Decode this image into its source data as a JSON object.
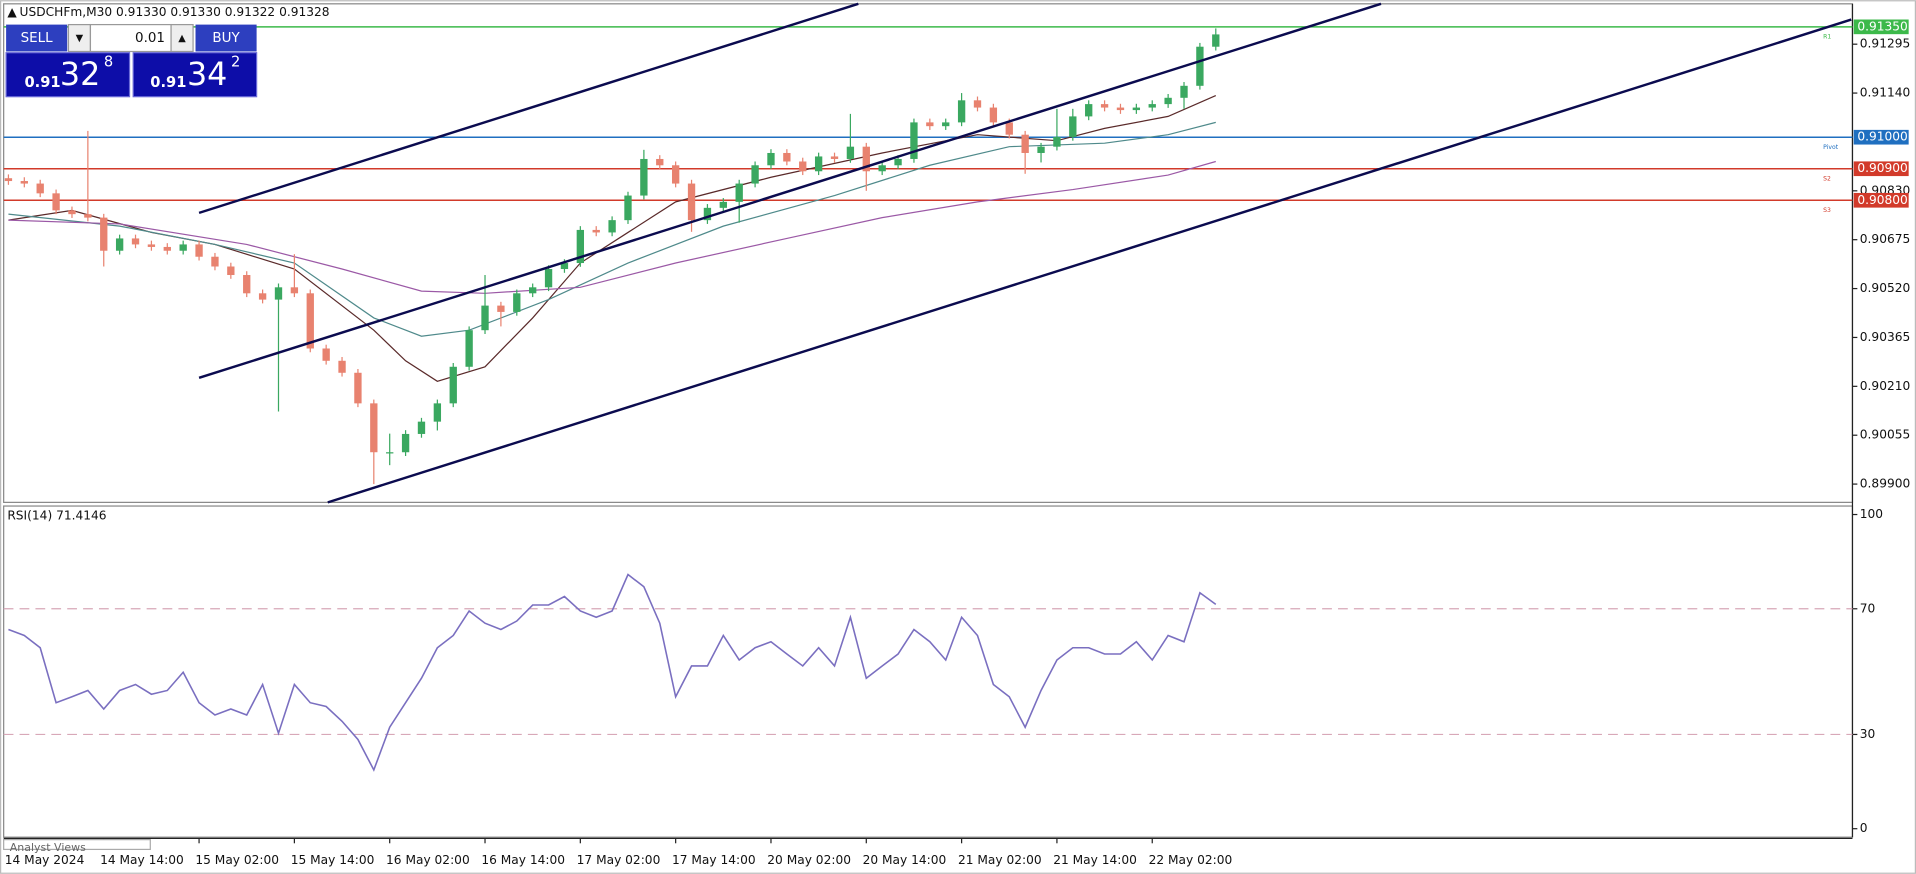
{
  "header": {
    "symbol_line": "USDCHFm,M30  0.91330 0.91330 0.91322 0.91328"
  },
  "trade_panel": {
    "sell": "SELL",
    "buy": "BUY",
    "lot": "0.01",
    "sell_big": "0.91",
    "sell_main": "32",
    "sell_small": "8",
    "buy_big": "0.91",
    "buy_main": "34",
    "buy_small": "2"
  },
  "footer": {
    "tab": "Analyst Views"
  },
  "chart_data": [
    {
      "type": "candlestick",
      "up_color": "#3aa860",
      "down_color": "#e8826f",
      "xlim": [
        -0.3,
        116
      ],
      "ylim": [
        0.89842,
        0.91423
      ],
      "yticks": [
        {
          "value": 0.91295,
          "label": "0.91295"
        },
        {
          "value": 0.9114,
          "label": "0.91140"
        },
        {
          "value": 0.9083,
          "label": "0.90830"
        },
        {
          "value": 0.90675,
          "label": "0.90675"
        },
        {
          "value": 0.9052,
          "label": "0.90520"
        },
        {
          "value": 0.90365,
          "label": "0.90365"
        },
        {
          "value": 0.9021,
          "label": "0.90210"
        },
        {
          "value": 0.90055,
          "label": "0.90055"
        },
        {
          "value": 0.899,
          "label": "0.89900"
        }
      ],
      "xticks": [
        {
          "value": 0,
          "label": "14 May 2024"
        },
        {
          "value": 6,
          "label": "14 May 14:00"
        },
        {
          "value": 12,
          "label": "15 May 02:00"
        },
        {
          "value": 18,
          "label": "15 May 14:00"
        },
        {
          "value": 24,
          "label": "16 May 02:00"
        },
        {
          "value": 30,
          "label": "16 May 14:00"
        },
        {
          "value": 36,
          "label": "17 May 02:00"
        },
        {
          "value": 42,
          "label": "17 May 14:00"
        },
        {
          "value": 48,
          "label": "20 May 02:00"
        },
        {
          "value": 54,
          "label": "20 May 14:00"
        },
        {
          "value": 60,
          "label": "21 May 02:00"
        },
        {
          "value": 66,
          "label": "21 May 14:00"
        },
        {
          "value": 72,
          "label": "22 May 02:00"
        }
      ],
      "open": [
        0.9087,
        0.90861,
        0.90853,
        0.90822,
        0.90768,
        0.90756,
        0.90745,
        0.9064,
        0.90679,
        0.9066,
        0.90652,
        0.9064,
        0.9066,
        0.90621,
        0.9059,
        0.90563,
        0.90505,
        0.90485,
        0.90524,
        0.90505,
        0.9033,
        0.90291,
        0.90253,
        0.90156,
        0.90001,
        0.90001,
        0.90059,
        0.90098,
        0.90156,
        0.90272,
        0.90388,
        0.90466,
        0.90446,
        0.90505,
        0.90524,
        0.90582,
        0.90601,
        0.90706,
        0.90698,
        0.90737,
        0.90815,
        0.90931,
        0.90911,
        0.90853,
        0.90737,
        0.90776,
        0.90795,
        0.90853,
        0.90911,
        0.9095,
        0.90923,
        0.90892,
        0.90939,
        0.90931,
        0.9097,
        0.90892,
        0.90911,
        0.90931,
        0.91047,
        0.91035,
        0.91047,
        0.91117,
        0.91094,
        0.91047,
        0.91008,
        0.9095,
        0.9097,
        0.91001,
        0.91066,
        0.91105,
        0.91094,
        0.91086,
        0.91094,
        0.91105,
        0.91125,
        0.91163,
        0.91287
      ],
      "high": [
        0.90882,
        0.90873,
        0.90865,
        0.90834,
        0.9078,
        0.9102,
        0.90757,
        0.90691,
        0.90691,
        0.90672,
        0.90664,
        0.90672,
        0.90672,
        0.90633,
        0.90602,
        0.90575,
        0.90517,
        0.90536,
        0.90629,
        0.90517,
        0.90342,
        0.90303,
        0.90265,
        0.90168,
        0.9006,
        0.90071,
        0.9011,
        0.90168,
        0.90284,
        0.904,
        0.90563,
        0.90478,
        0.90517,
        0.90536,
        0.90594,
        0.90613,
        0.90718,
        0.90718,
        0.90749,
        0.90827,
        0.9096,
        0.90943,
        0.90923,
        0.90865,
        0.90788,
        0.90807,
        0.90865,
        0.90923,
        0.90962,
        0.90962,
        0.90935,
        0.90951,
        0.90951,
        0.91074,
        0.90982,
        0.90923,
        0.90943,
        0.91059,
        0.91059,
        0.91059,
        0.9114,
        0.91129,
        0.91106,
        0.91059,
        0.9102,
        0.90982,
        0.9109,
        0.9109,
        0.91117,
        0.91117,
        0.91106,
        0.91106,
        0.91117,
        0.91137,
        0.91175,
        0.91299,
        0.91345
      ],
      "low": [
        0.90849,
        0.90841,
        0.9081,
        0.90756,
        0.90744,
        0.90733,
        0.9059,
        0.90628,
        0.90648,
        0.9064,
        0.90628,
        0.90628,
        0.90609,
        0.90578,
        0.90551,
        0.90493,
        0.90473,
        0.9013,
        0.90493,
        0.90318,
        0.90279,
        0.90241,
        0.90144,
        0.899,
        0.8996,
        0.89989,
        0.90047,
        0.9007,
        0.90144,
        0.9026,
        0.90376,
        0.904,
        0.90434,
        0.90493,
        0.90512,
        0.9057,
        0.90589,
        0.90686,
        0.90686,
        0.90725,
        0.90803,
        0.90899,
        0.90841,
        0.907,
        0.90725,
        0.90764,
        0.90729,
        0.90841,
        0.90899,
        0.90911,
        0.9088,
        0.9088,
        0.90919,
        0.90919,
        0.9083,
        0.9088,
        0.90899,
        0.90919,
        0.91023,
        0.91023,
        0.91035,
        0.91082,
        0.91035,
        0.90996,
        0.90884,
        0.9092,
        0.90958,
        0.90989,
        0.91054,
        0.91082,
        0.91074,
        0.91074,
        0.91082,
        0.91093,
        0.9109,
        0.91151,
        0.91275
      ],
      "close": [
        0.90861,
        0.90853,
        0.90822,
        0.90768,
        0.90756,
        0.90745,
        0.9064,
        0.90679,
        0.9066,
        0.90652,
        0.9064,
        0.9066,
        0.90621,
        0.9059,
        0.90563,
        0.90505,
        0.90485,
        0.90524,
        0.90505,
        0.9033,
        0.90291,
        0.90253,
        0.90156,
        0.90001,
        0.90001,
        0.90059,
        0.90098,
        0.90156,
        0.90272,
        0.90388,
        0.90466,
        0.90446,
        0.90505,
        0.90524,
        0.90582,
        0.90601,
        0.90706,
        0.90698,
        0.90737,
        0.90815,
        0.90931,
        0.90911,
        0.90853,
        0.90737,
        0.90776,
        0.90795,
        0.90853,
        0.90911,
        0.9095,
        0.90923,
        0.90892,
        0.90939,
        0.90931,
        0.9097,
        0.90892,
        0.90911,
        0.90931,
        0.91047,
        0.91035,
        0.91047,
        0.91117,
        0.91094,
        0.91047,
        0.91008,
        0.9095,
        0.9097,
        0.91001,
        0.91066,
        0.91105,
        0.91094,
        0.91086,
        0.91094,
        0.91105,
        0.91125,
        0.91163,
        0.91287,
        0.91326
      ],
      "moving_averages": [
        {
          "color": "#5a2a2a",
          "x": [
            0,
            4,
            9,
            13,
            18,
            23,
            25,
            27,
            30,
            33,
            36,
            39,
            42,
            48,
            55,
            61,
            66,
            69,
            73,
            76
          ],
          "values": [
            0.90737,
            0.90768,
            0.90698,
            0.9066,
            0.90582,
            0.90388,
            0.90291,
            0.90226,
            0.90272,
            0.90427,
            0.90601,
            0.90698,
            0.90795,
            0.90873,
            0.9095,
            0.91008,
            0.90989,
            0.91028,
            0.91066,
            0.91132
          ]
        },
        {
          "color": "#4f8a8b",
          "x": [
            0,
            7,
            13,
            18,
            23,
            26,
            29,
            34,
            39,
            45,
            52,
            58,
            63,
            69,
            73,
            76
          ],
          "values": [
            0.90756,
            0.90718,
            0.9066,
            0.90601,
            0.90427,
            0.90369,
            0.90388,
            0.90485,
            0.90601,
            0.90718,
            0.90815,
            0.90911,
            0.9097,
            0.90981,
            0.91008,
            0.91047
          ]
        },
        {
          "color": "#9b59a6",
          "x": [
            0,
            7,
            15,
            21,
            26,
            30,
            36,
            42,
            49,
            55,
            61,
            67,
            73,
            76
          ],
          "values": [
            0.90737,
            0.90725,
            0.9066,
            0.90582,
            0.90512,
            0.90505,
            0.90524,
            0.90601,
            0.90679,
            0.90745,
            0.90795,
            0.90834,
            0.9088,
            0.90923
          ]
        }
      ],
      "trendlines": [
        {
          "color": "#0b0b4f",
          "x": [
            12,
            53.5
          ],
          "y": [
            0.9076,
            0.91423
          ]
        },
        {
          "color": "#0b0b4f",
          "x": [
            12,
            86.4
          ],
          "y": [
            0.90237,
            0.91423
          ]
        },
        {
          "color": "#0b0b4f",
          "x": [
            20.1,
            116
          ],
          "y": [
            0.89842,
            0.91373
          ]
        }
      ],
      "levels": [
        {
          "value": 0.9135,
          "label": "0.91350",
          "name": "R1",
          "color": "#3cb94a"
        },
        {
          "value": 0.91,
          "label": "0.91000",
          "name": "Pivot",
          "color": "#1f6fc0"
        },
        {
          "value": 0.909,
          "label": "0.90900",
          "name": "S2",
          "color": "#d23a2a"
        },
        {
          "value": 0.908,
          "label": "0.90800",
          "name": "S3",
          "color": "#d23a2a"
        }
      ]
    },
    {
      "type": "line",
      "title": "RSI(14) 71.4146",
      "color": "#7a6fc0",
      "xlim": [
        -0.3,
        116
      ],
      "ylim": [
        -2.7,
        102.7
      ],
      "yticks": [
        100,
        70,
        30,
        0
      ],
      "dashed_levels": [
        70,
        30
      ],
      "values": [
        63.4,
        61.5,
        57.6,
        40.1,
        42.0,
        44.0,
        38.1,
        44.0,
        45.9,
        42.8,
        44.0,
        49.8,
        40.1,
        36.2,
        38.1,
        36.2,
        45.9,
        30.4,
        45.9,
        40.1,
        38.9,
        34.2,
        28.4,
        18.7,
        32.3,
        40.1,
        47.9,
        57.6,
        61.5,
        69.3,
        65.4,
        63.4,
        66.1,
        71.2,
        71.2,
        73.9,
        69.3,
        67.3,
        69.3,
        80.9,
        77.0,
        65.4,
        42.0,
        51.8,
        51.8,
        61.5,
        53.7,
        57.6,
        59.5,
        55.6,
        51.8,
        57.6,
        51.8,
        67.3,
        47.9,
        51.8,
        55.6,
        63.4,
        59.5,
        53.7,
        67.3,
        61.5,
        45.9,
        42.0,
        32.3,
        44.0,
        53.7,
        57.6,
        57.6,
        55.6,
        55.6,
        59.5,
        53.7,
        61.5,
        59.5,
        75.1,
        71.4146
      ]
    }
  ]
}
